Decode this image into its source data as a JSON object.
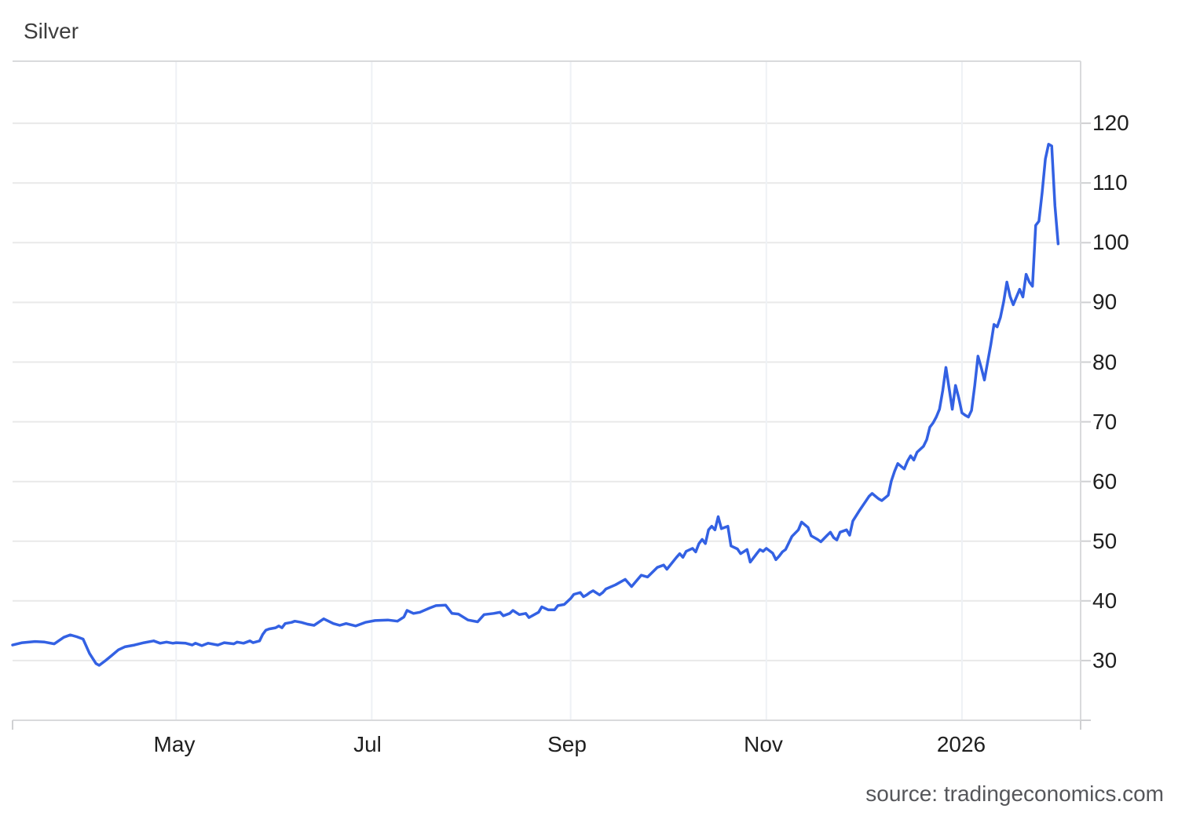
{
  "page": {
    "title": "Silver",
    "source": "source: tradingeconomics.com"
  },
  "chart_data": {
    "type": "line",
    "title": "Silver",
    "subtitle": "",
    "xlabel": "",
    "ylabel": "",
    "legend": false,
    "grid": true,
    "y_axis_side": "right",
    "line_color": "#3361e3",
    "grid_color_h": "#e9e9e9",
    "grid_color_v": "#eef1f5",
    "border_color": "#d9dadc",
    "x_domain": [
      "2025-03-11",
      "2026-02-07"
    ],
    "y_domain": [
      20,
      130.4
    ],
    "x_axis": {
      "tick_labels": [
        "May",
        "Jul",
        "Sep",
        "Nov",
        "2026"
      ],
      "tick_dates": [
        "2025-05-01",
        "2025-07-01",
        "2025-09-01",
        "2025-11-01",
        "2026-01-01"
      ]
    },
    "y_axis": {
      "ticks": [
        30,
        40,
        50,
        60,
        70,
        80,
        90,
        100,
        110,
        120
      ]
    },
    "series": [
      {
        "name": "Silver",
        "points": [
          [
            "2025-03-11",
            32.6
          ],
          [
            "2025-03-14",
            33.0
          ],
          [
            "2025-03-18",
            33.2
          ],
          [
            "2025-03-21",
            33.1
          ],
          [
            "2025-03-24",
            32.8
          ],
          [
            "2025-03-27",
            33.9
          ],
          [
            "2025-03-29",
            34.3
          ],
          [
            "2025-03-31",
            34.0
          ],
          [
            "2025-04-02",
            33.6
          ],
          [
            "2025-04-04",
            31.2
          ],
          [
            "2025-04-06",
            29.5
          ],
          [
            "2025-04-07",
            29.2
          ],
          [
            "2025-04-09",
            30.0
          ],
          [
            "2025-04-11",
            30.9
          ],
          [
            "2025-04-13",
            31.8
          ],
          [
            "2025-04-15",
            32.3
          ],
          [
            "2025-04-18",
            32.6
          ],
          [
            "2025-04-21",
            33.0
          ],
          [
            "2025-04-24",
            33.3
          ],
          [
            "2025-04-26",
            32.9
          ],
          [
            "2025-04-28",
            33.1
          ],
          [
            "2025-04-30",
            32.9
          ],
          [
            "2025-05-01",
            33.0
          ],
          [
            "2025-05-04",
            32.9
          ],
          [
            "2025-05-06",
            32.6
          ],
          [
            "2025-05-07",
            32.9
          ],
          [
            "2025-05-09",
            32.5
          ],
          [
            "2025-05-11",
            32.9
          ],
          [
            "2025-05-14",
            32.6
          ],
          [
            "2025-05-16",
            33.0
          ],
          [
            "2025-05-19",
            32.8
          ],
          [
            "2025-05-20",
            33.1
          ],
          [
            "2025-05-22",
            32.9
          ],
          [
            "2025-05-24",
            33.3
          ],
          [
            "2025-05-25",
            33.0
          ],
          [
            "2025-05-27",
            33.3
          ],
          [
            "2025-05-28",
            34.4
          ],
          [
            "2025-05-29",
            35.1
          ],
          [
            "2025-05-30",
            35.3
          ],
          [
            "2025-06-01",
            35.5
          ],
          [
            "2025-06-02",
            35.8
          ],
          [
            "2025-06-03",
            35.5
          ],
          [
            "2025-06-04",
            36.2
          ],
          [
            "2025-06-06",
            36.4
          ],
          [
            "2025-06-07",
            36.6
          ],
          [
            "2025-06-09",
            36.4
          ],
          [
            "2025-06-11",
            36.1
          ],
          [
            "2025-06-13",
            35.9
          ],
          [
            "2025-06-16",
            37.0
          ],
          [
            "2025-06-19",
            36.2
          ],
          [
            "2025-06-21",
            35.9
          ],
          [
            "2025-06-23",
            36.2
          ],
          [
            "2025-06-26",
            35.8
          ],
          [
            "2025-06-29",
            36.4
          ],
          [
            "2025-07-02",
            36.7
          ],
          [
            "2025-07-06",
            36.8
          ],
          [
            "2025-07-09",
            36.6
          ],
          [
            "2025-07-11",
            37.3
          ],
          [
            "2025-07-12",
            38.4
          ],
          [
            "2025-07-14",
            37.9
          ],
          [
            "2025-07-16",
            38.1
          ],
          [
            "2025-07-19",
            38.8
          ],
          [
            "2025-07-21",
            39.2
          ],
          [
            "2025-07-24",
            39.3
          ],
          [
            "2025-07-26",
            37.9
          ],
          [
            "2025-07-28",
            37.8
          ],
          [
            "2025-07-31",
            36.8
          ],
          [
            "2025-08-03",
            36.5
          ],
          [
            "2025-08-05",
            37.7
          ],
          [
            "2025-08-08",
            37.9
          ],
          [
            "2025-08-10",
            38.1
          ],
          [
            "2025-08-11",
            37.5
          ],
          [
            "2025-08-13",
            37.9
          ],
          [
            "2025-08-14",
            38.4
          ],
          [
            "2025-08-16",
            37.7
          ],
          [
            "2025-08-18",
            37.9
          ],
          [
            "2025-08-19",
            37.2
          ],
          [
            "2025-08-22",
            38.1
          ],
          [
            "2025-08-23",
            39.0
          ],
          [
            "2025-08-25",
            38.5
          ],
          [
            "2025-08-27",
            38.5
          ],
          [
            "2025-08-28",
            39.2
          ],
          [
            "2025-08-30",
            39.4
          ],
          [
            "2025-09-01",
            40.4
          ],
          [
            "2025-09-02",
            41.1
          ],
          [
            "2025-09-04",
            41.4
          ],
          [
            "2025-09-05",
            40.7
          ],
          [
            "2025-09-06",
            41.0
          ],
          [
            "2025-09-07",
            41.4
          ],
          [
            "2025-09-08",
            41.7
          ],
          [
            "2025-09-10",
            41.0
          ],
          [
            "2025-09-11",
            41.4
          ],
          [
            "2025-09-12",
            42.0
          ],
          [
            "2025-09-15",
            42.7
          ],
          [
            "2025-09-18",
            43.6
          ],
          [
            "2025-09-20",
            42.4
          ],
          [
            "2025-09-23",
            44.3
          ],
          [
            "2025-09-25",
            44.0
          ],
          [
            "2025-09-28",
            45.6
          ],
          [
            "2025-09-30",
            46.0
          ],
          [
            "2025-10-01",
            45.3
          ],
          [
            "2025-10-04",
            47.3
          ],
          [
            "2025-10-05",
            47.9
          ],
          [
            "2025-10-06",
            47.3
          ],
          [
            "2025-10-07",
            48.3
          ],
          [
            "2025-10-09",
            48.8
          ],
          [
            "2025-10-10",
            48.2
          ],
          [
            "2025-10-11",
            49.6
          ],
          [
            "2025-10-12",
            50.3
          ],
          [
            "2025-10-13",
            49.6
          ],
          [
            "2025-10-14",
            51.9
          ],
          [
            "2025-10-15",
            52.5
          ],
          [
            "2025-10-16",
            51.9
          ],
          [
            "2025-10-17",
            54.1
          ],
          [
            "2025-10-18",
            52.1
          ],
          [
            "2025-10-20",
            52.5
          ],
          [
            "2025-10-21",
            49.2
          ],
          [
            "2025-10-23",
            48.7
          ],
          [
            "2025-10-24",
            47.9
          ],
          [
            "2025-10-26",
            48.6
          ],
          [
            "2025-10-27",
            46.5
          ],
          [
            "2025-10-29",
            47.9
          ],
          [
            "2025-10-30",
            48.6
          ],
          [
            "2025-10-31",
            48.3
          ],
          [
            "2025-11-01",
            48.8
          ],
          [
            "2025-11-03",
            48.0
          ],
          [
            "2025-11-04",
            46.9
          ],
          [
            "2025-11-05",
            47.5
          ],
          [
            "2025-11-06",
            48.2
          ],
          [
            "2025-11-07",
            48.6
          ],
          [
            "2025-11-09",
            50.8
          ],
          [
            "2025-11-11",
            51.9
          ],
          [
            "2025-11-12",
            53.2
          ],
          [
            "2025-11-14",
            52.3
          ],
          [
            "2025-11-15",
            50.9
          ],
          [
            "2025-11-17",
            50.3
          ],
          [
            "2025-11-18",
            49.9
          ],
          [
            "2025-11-20",
            51.0
          ],
          [
            "2025-11-21",
            51.5
          ],
          [
            "2025-11-22",
            50.6
          ],
          [
            "2025-11-23",
            50.2
          ],
          [
            "2025-11-24",
            51.5
          ],
          [
            "2025-11-26",
            51.9
          ],
          [
            "2025-11-27",
            51.0
          ],
          [
            "2025-11-28",
            53.4
          ],
          [
            "2025-11-30",
            55.1
          ],
          [
            "2025-12-02",
            56.7
          ],
          [
            "2025-12-03",
            57.5
          ],
          [
            "2025-12-04",
            58.0
          ],
          [
            "2025-12-06",
            57.1
          ],
          [
            "2025-12-07",
            56.8
          ],
          [
            "2025-12-09",
            57.7
          ],
          [
            "2025-12-10",
            60.1
          ],
          [
            "2025-12-11",
            61.7
          ],
          [
            "2025-12-12",
            63.0
          ],
          [
            "2025-12-14",
            62.1
          ],
          [
            "2025-12-15",
            63.4
          ],
          [
            "2025-12-16",
            64.3
          ],
          [
            "2025-12-17",
            63.6
          ],
          [
            "2025-12-18",
            64.9
          ],
          [
            "2025-12-20",
            65.9
          ],
          [
            "2025-12-21",
            67.0
          ],
          [
            "2025-12-22",
            69.1
          ],
          [
            "2025-12-23",
            69.8
          ],
          [
            "2025-12-24",
            70.8
          ],
          [
            "2025-12-25",
            72.1
          ],
          [
            "2025-12-26",
            75.2
          ],
          [
            "2025-12-27",
            79.1
          ],
          [
            "2025-12-29",
            72.1
          ],
          [
            "2025-12-30",
            76.1
          ],
          [
            "2025-12-31",
            74.0
          ],
          [
            "2026-01-01",
            71.5
          ],
          [
            "2026-01-02",
            71.1
          ],
          [
            "2026-01-03",
            70.8
          ],
          [
            "2026-01-04",
            71.9
          ],
          [
            "2026-01-05",
            76.1
          ],
          [
            "2026-01-06",
            81.0
          ],
          [
            "2026-01-07",
            79.1
          ],
          [
            "2026-01-08",
            77.0
          ],
          [
            "2026-01-09",
            80.0
          ],
          [
            "2026-01-10",
            82.9
          ],
          [
            "2026-01-11",
            86.3
          ],
          [
            "2026-01-12",
            85.9
          ],
          [
            "2026-01-13",
            87.5
          ],
          [
            "2026-01-14",
            90.1
          ],
          [
            "2026-01-15",
            93.4
          ],
          [
            "2026-01-16",
            91.0
          ],
          [
            "2026-01-17",
            89.6
          ],
          [
            "2026-01-19",
            92.2
          ],
          [
            "2026-01-20",
            90.9
          ],
          [
            "2026-01-21",
            94.7
          ],
          [
            "2026-01-22",
            93.4
          ],
          [
            "2026-01-23",
            92.7
          ],
          [
            "2026-01-24",
            102.9
          ],
          [
            "2026-01-25",
            103.6
          ],
          [
            "2026-01-26",
            108.4
          ],
          [
            "2026-01-27",
            114.0
          ],
          [
            "2026-01-28",
            116.5
          ],
          [
            "2026-01-29",
            116.2
          ],
          [
            "2026-01-30",
            106.2
          ],
          [
            "2026-01-31",
            99.8
          ]
        ]
      }
    ]
  }
}
